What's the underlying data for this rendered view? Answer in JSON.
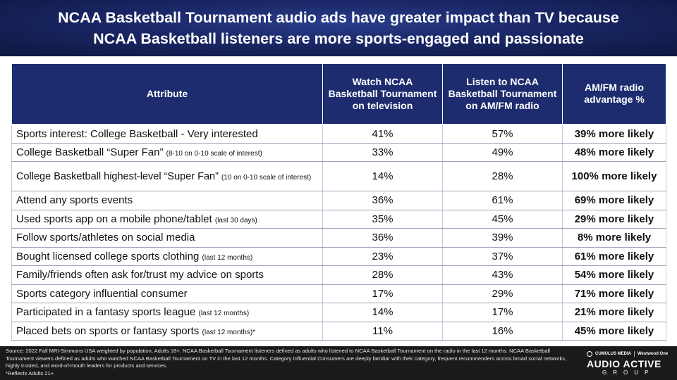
{
  "title": {
    "line1": "NCAA Basketball Tournament audio ads have greater impact than TV because",
    "line2": "NCAA Basketball listeners are more sports-engaged and passionate"
  },
  "table": {
    "headers": {
      "attribute": "Attribute",
      "tv": "Watch NCAA Basketball Tournament on television",
      "radio": "Listen to NCAA Basketball Tournament on AM/FM radio",
      "advantage": "AM/FM radio advantage %"
    },
    "rows": [
      {
        "label": "Sports interest: College Basketball - Very interested",
        "note": "",
        "tv": "41%",
        "radio": "57%",
        "advantage": "39% more likely"
      },
      {
        "label": "College Basketball “Super Fan”",
        "note": "(8-10 on 0-10 scale of interest)",
        "tv": "33%",
        "radio": "49%",
        "advantage": "48% more likely"
      },
      {
        "label": "College Basketball highest-level “Super Fan”",
        "note": "(10 on 0-10 scale of interest)",
        "tv": "14%",
        "radio": "28%",
        "advantage": "100% more likely"
      },
      {
        "label": "Attend any sports events",
        "note": "",
        "tv": "36%",
        "radio": "61%",
        "advantage": "69% more likely"
      },
      {
        "label": "Used sports app on a mobile phone/tablet",
        "note": "(last 30 days)",
        "tv": "35%",
        "radio": "45%",
        "advantage": "29% more likely"
      },
      {
        "label": "Follow sports/athletes on social media",
        "note": "",
        "tv": "36%",
        "radio": "39%",
        "advantage": "8% more likely"
      },
      {
        "label": "Bought licensed college sports clothing",
        "note": "(last 12 months)",
        "tv": "23%",
        "radio": "37%",
        "advantage": "61% more likely"
      },
      {
        "label": "Family/friends often ask for/trust my advice on sports",
        "note": "",
        "tv": "28%",
        "radio": "43%",
        "advantage": "54% more likely"
      },
      {
        "label": "Sports category influential consumer",
        "note": "",
        "tv": "17%",
        "radio": "29%",
        "advantage": "71% more likely"
      },
      {
        "label": "Participated in a fantasy sports league",
        "note": "(last 12 months)",
        "tv": "14%",
        "radio": "17%",
        "advantage": "21% more likely"
      },
      {
        "label": "Placed bets on sports or fantasy sports",
        "note": "(last 12 months)*",
        "tv": "11%",
        "radio": "16%",
        "advantage": "45% more likely"
      }
    ]
  },
  "footer": {
    "source": "Source:  2022 Fall MRI-Simmons  USA weighted by population, Adults 18+. NCAA Basketball Tournament  listeners defined  as adults who listened to NCAA Basketball Tournament  on the radio in the last 12 months. NCAA Basketball Tournament  viewers defined as adults who watched NCAA Basketball Tournament  on TV  in the last 12 months. Category Influential Consumers  are deeply familiar with their category, frequent recommenders across broad social networks, highly trusted, and word-of-mouth leaders for products and services.",
    "note": "*Reflects Adults 21+",
    "logo": {
      "cumulus": "CUMULUS MEDIA",
      "westwood": "Westwood One",
      "name": "AUDIO ACTIVE",
      "group": "GROUP"
    }
  }
}
